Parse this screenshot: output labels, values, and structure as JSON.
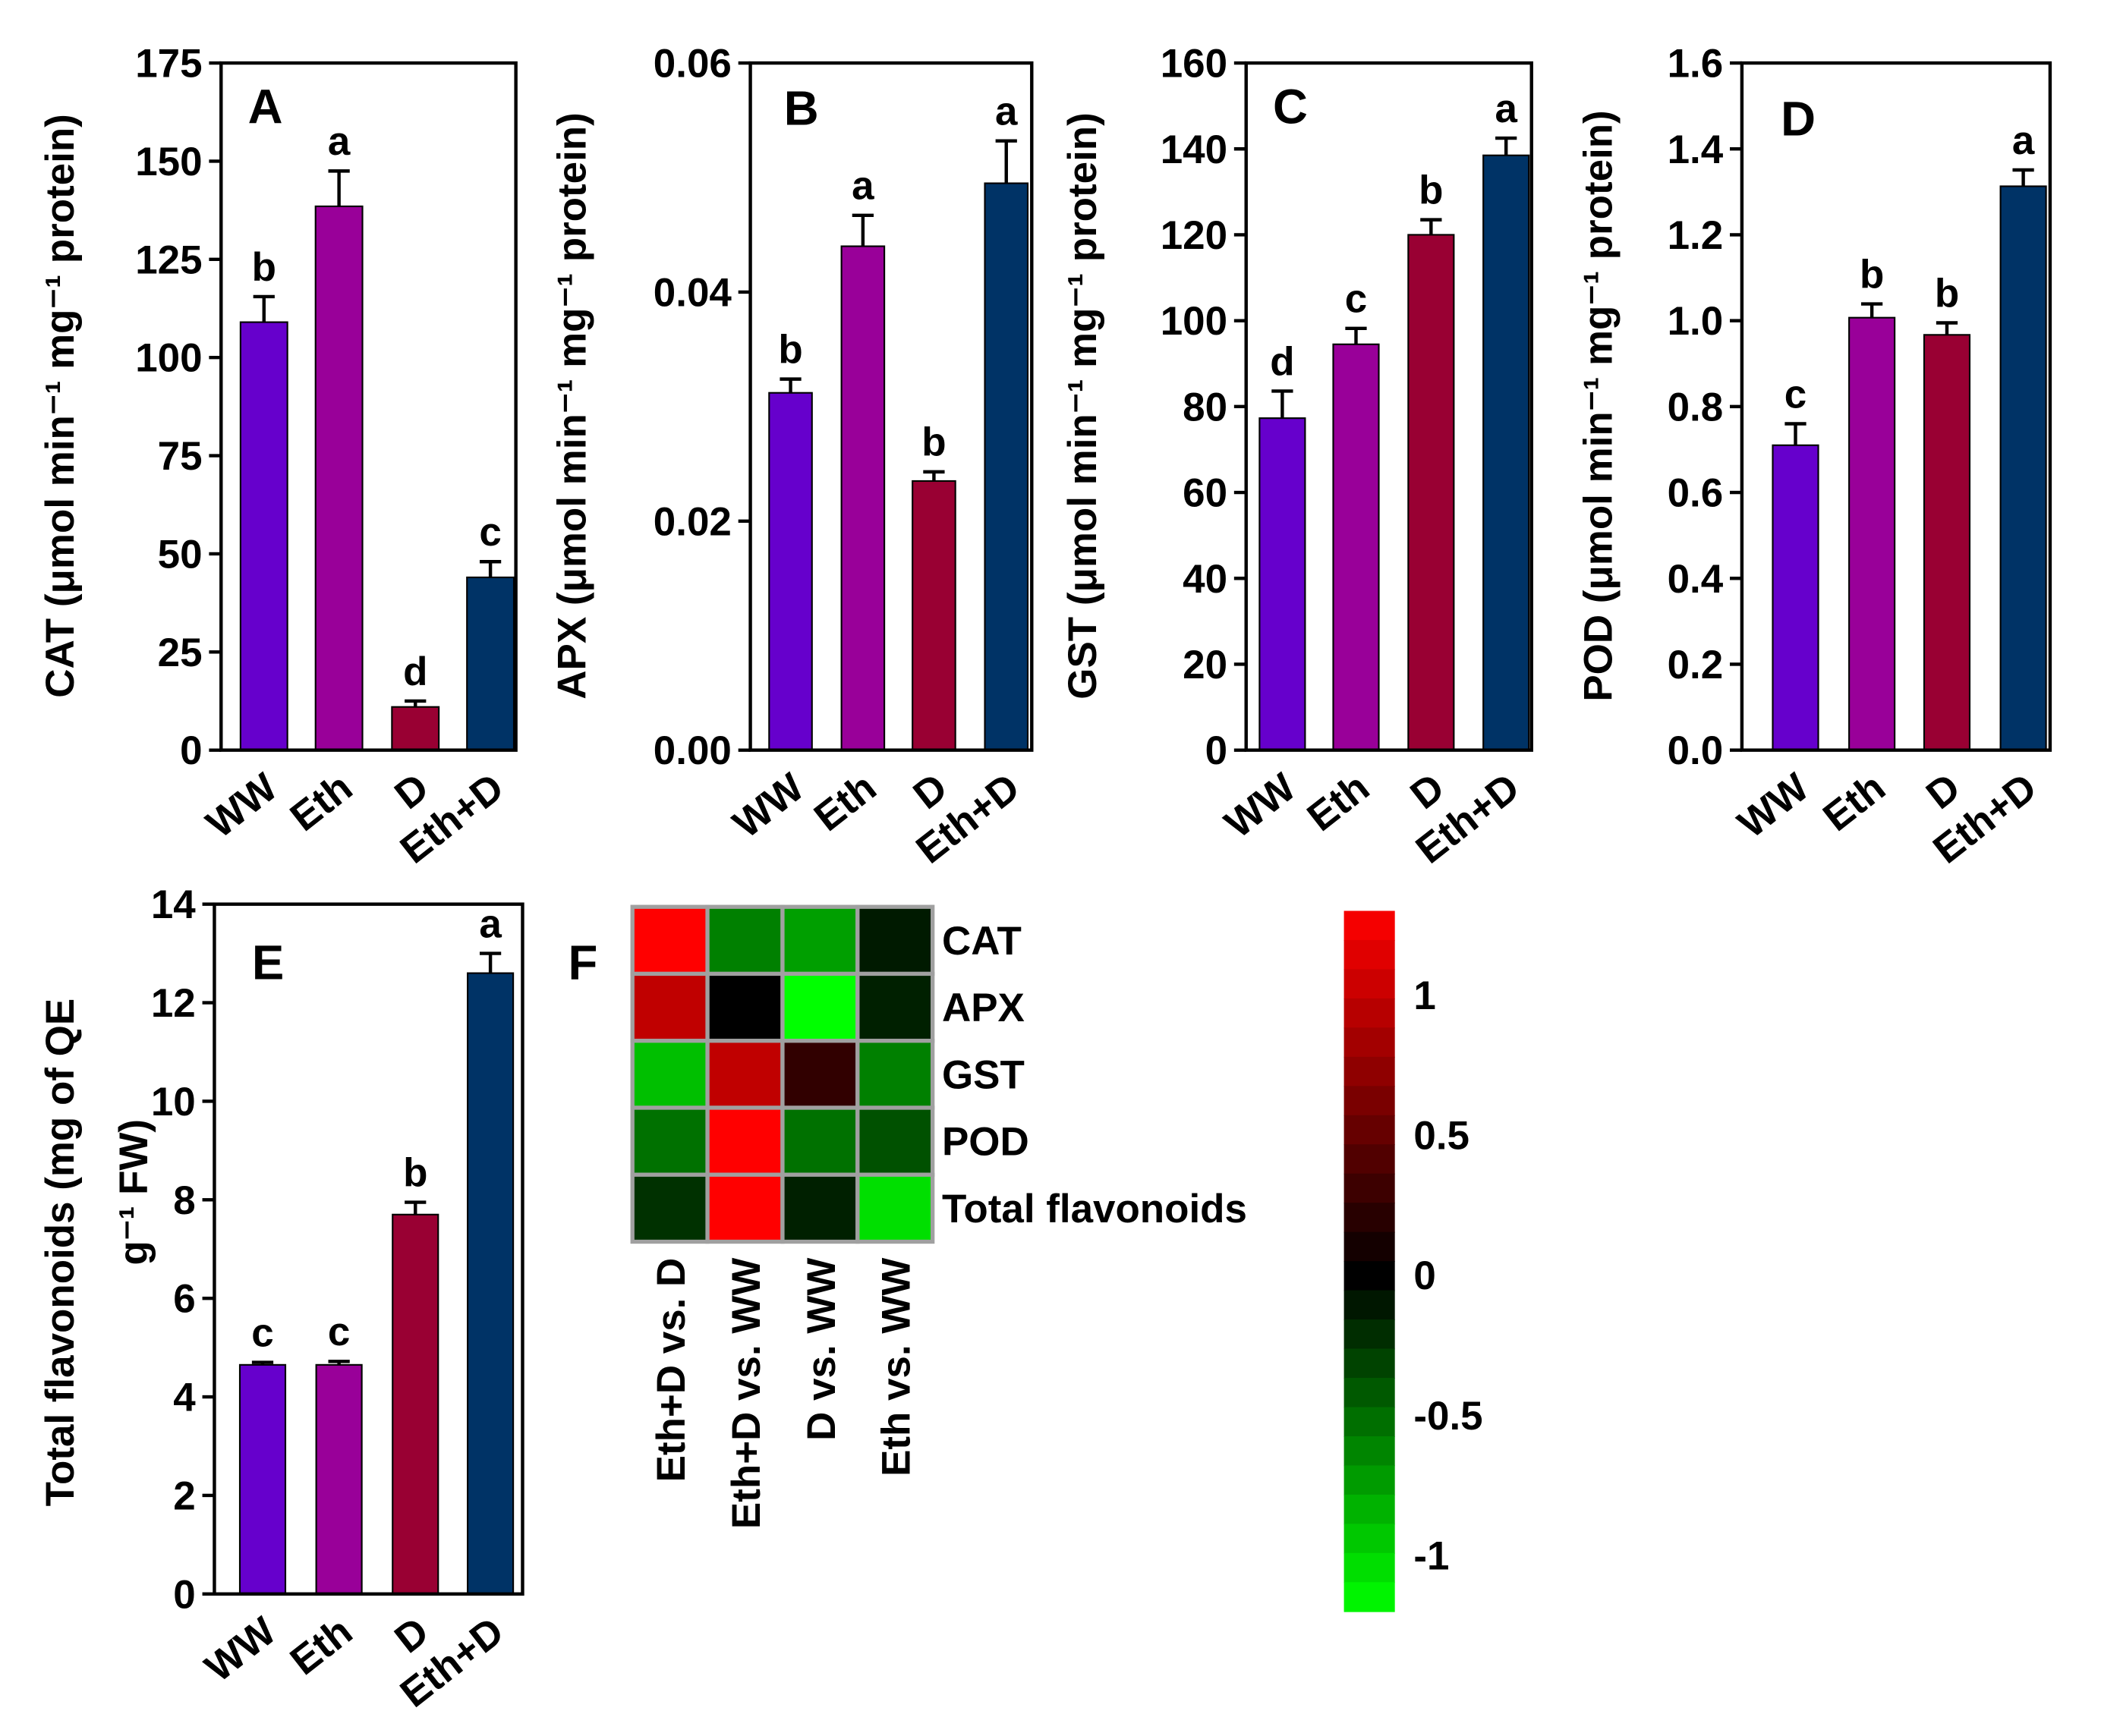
{
  "chart_data": [
    {
      "panel": "A",
      "type": "bar",
      "categories": [
        "WW",
        "Eth",
        "D",
        "Eth+D"
      ],
      "values": [
        109,
        138.5,
        11,
        44
      ],
      "errors": [
        6.5,
        9,
        1.5,
        4
      ],
      "letters": [
        "b",
        "a",
        "d",
        "c"
      ],
      "ylabel": "CAT (μmol min⁻¹ mg⁻¹ protein)",
      "ylim": [
        0,
        175
      ],
      "yticks": [
        "0",
        "25",
        "50",
        "75",
        "100",
        "125",
        "150",
        "175"
      ],
      "colors": [
        "#6600cc",
        "#990099",
        "#990033",
        "#003366"
      ]
    },
    {
      "panel": "B",
      "type": "bar",
      "categories": [
        "WW",
        "Eth",
        "D",
        "Eth+D"
      ],
      "values": [
        0.0312,
        0.044,
        0.0235,
        0.0495
      ],
      "errors": [
        0.0012,
        0.0027,
        0.0008,
        0.0037
      ],
      "letters": [
        "b",
        "a",
        "b",
        "a"
      ],
      "ylabel": "APX (μmol min⁻¹ mg⁻¹ protein)",
      "ylim": [
        0,
        0.06
      ],
      "yticks": [
        "0.00",
        "0.02",
        "0.04",
        "0.06"
      ],
      "colors": [
        "#6600cc",
        "#990099",
        "#990033",
        "#003366"
      ]
    },
    {
      "panel": "C",
      "type": "bar",
      "categories": [
        "WW",
        "Eth",
        "D",
        "Eth+D"
      ],
      "values": [
        77.3,
        94.5,
        120,
        138.5
      ],
      "errors": [
        6.3,
        3.7,
        3.5,
        4
      ],
      "letters": [
        "d",
        "c",
        "b",
        "a"
      ],
      "ylabel": "GST (μmol min⁻¹ mg⁻¹ protein)",
      "ylim": [
        0,
        160
      ],
      "yticks": [
        "0",
        "20",
        "40",
        "60",
        "80",
        "100",
        "120",
        "140",
        "160"
      ],
      "colors": [
        "#6600cc",
        "#990099",
        "#990033",
        "#003366"
      ]
    },
    {
      "panel": "D",
      "type": "bar",
      "categories": [
        "WW",
        "Eth",
        "D",
        "Eth+D"
      ],
      "values": [
        0.71,
        1.007,
        0.967,
        1.313
      ],
      "errors": [
        0.05,
        0.032,
        0.028,
        0.038
      ],
      "letters": [
        "c",
        "b",
        "b",
        "a"
      ],
      "ylabel": "POD (μmol min⁻¹ mg⁻¹ protein)",
      "ylim": [
        0,
        1.6
      ],
      "yticks": [
        "0.0",
        "0.2",
        "0.4",
        "0.6",
        "0.8",
        "1.0",
        "1.2",
        "1.4",
        "1.6"
      ],
      "colors": [
        "#6600cc",
        "#990099",
        "#990033",
        "#003366"
      ]
    },
    {
      "panel": "E",
      "type": "bar",
      "categories": [
        "WW",
        "Eth",
        "D",
        "Eth+D"
      ],
      "values": [
        4.65,
        4.65,
        7.7,
        12.6
      ],
      "errors": [
        0.05,
        0.07,
        0.25,
        0.4
      ],
      "letters": [
        "c",
        "c",
        "b",
        "a"
      ],
      "ylabel": [
        "Total flavonoids (mg of QE",
        "g⁻¹ FW)"
      ],
      "ylim": [
        0,
        14
      ],
      "yticks": [
        "0",
        "2",
        "4",
        "6",
        "8",
        "10",
        "12",
        "14"
      ],
      "colors": [
        "#6600cc",
        "#990099",
        "#990033",
        "#003366"
      ]
    },
    {
      "panel": "F",
      "type": "heatmap",
      "rows": [
        "CAT",
        "APX",
        "GST",
        "POD",
        "Total flavonoids"
      ],
      "columns": [
        "Eth+D vs. D",
        "Eth+D vs. WW",
        "D vs. WW",
        "Eth vs. WW"
      ],
      "values": [
        [
          1.3,
          -0.6,
          -0.75,
          -0.12
        ],
        [
          0.98,
          0.0,
          -1.2,
          -0.15
        ],
        [
          -0.9,
          0.98,
          0.25,
          -0.6
        ],
        [
          -0.53,
          1.3,
          -0.53,
          -0.38
        ],
        [
          -0.23,
          1.3,
          -0.15,
          -1.05
        ]
      ],
      "colorbar": {
        "range": [
          -1.2,
          1.3
        ],
        "ticks": [
          "1",
          "0.5",
          "0",
          "-0.5",
          "-1"
        ],
        "low_color": "#00ff00",
        "mid_color": "#000000",
        "high_color": "#ff0000"
      }
    }
  ]
}
